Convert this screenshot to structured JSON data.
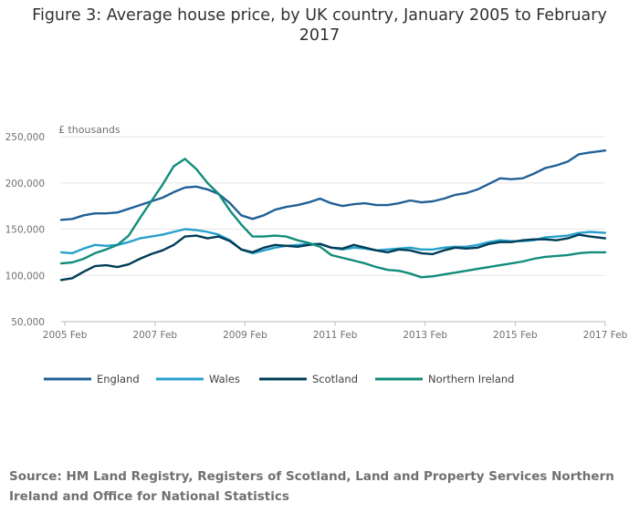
{
  "title": "Figure 3: Average house price, by UK country, January 2005 to February 2017",
  "unit_label": "£ thousands",
  "source": "Source: HM Land Registry, Registers of Scotland, Land and Property Services Northern Ireland and Office for National Statistics",
  "colors": {
    "england": "#206095",
    "wales": "#27a0cc",
    "scotland": "#003c57",
    "northern_ireland": "#118c7b",
    "grid": "#e6e6e6",
    "axis": "#bebebe"
  },
  "chart_data": {
    "type": "line",
    "title": "Figure 3: Average house price, by UK country, January 2005 to February 2017",
    "ylabel": "£ thousands",
    "xlabel": "",
    "x_start": "2005-01",
    "x_end": "2017-02",
    "ylim": [
      50000,
      250000
    ],
    "yticks": [
      50000,
      100000,
      150000,
      200000,
      250000
    ],
    "ytick_labels": [
      "50,000",
      "100,000",
      "150,000",
      "200,000",
      "250,000"
    ],
    "xtick_labels": [
      "2005 Feb",
      "2007 Feb",
      "2009 Feb",
      "2011 Feb",
      "2013 Feb",
      "2015 Feb",
      "2017 Feb"
    ],
    "grid": true,
    "legend_position": "bottom",
    "series": [
      {
        "name": "England",
        "points": [
          [
            "2005-01",
            160000
          ],
          [
            "2005-04",
            161000
          ],
          [
            "2005-07",
            165000
          ],
          [
            "2005-10",
            167000
          ],
          [
            "2006-01",
            167000
          ],
          [
            "2006-04",
            168000
          ],
          [
            "2006-07",
            172000
          ],
          [
            "2006-10",
            176000
          ],
          [
            "2007-01",
            180000
          ],
          [
            "2007-04",
            184000
          ],
          [
            "2007-07",
            190000
          ],
          [
            "2007-10",
            195000
          ],
          [
            "2008-01",
            196000
          ],
          [
            "2008-04",
            193000
          ],
          [
            "2008-07",
            188000
          ],
          [
            "2008-10",
            178000
          ],
          [
            "2009-01",
            165000
          ],
          [
            "2009-04",
            161000
          ],
          [
            "2009-07",
            165000
          ],
          [
            "2009-10",
            171000
          ],
          [
            "2010-01",
            174000
          ],
          [
            "2010-04",
            176000
          ],
          [
            "2010-07",
            179000
          ],
          [
            "2010-10",
            183000
          ],
          [
            "2011-01",
            178000
          ],
          [
            "2011-04",
            175000
          ],
          [
            "2011-07",
            177000
          ],
          [
            "2011-10",
            178000
          ],
          [
            "2012-01",
            176000
          ],
          [
            "2012-04",
            176000
          ],
          [
            "2012-07",
            178000
          ],
          [
            "2012-10",
            181000
          ],
          [
            "2013-01",
            179000
          ],
          [
            "2013-04",
            180000
          ],
          [
            "2013-07",
            183000
          ],
          [
            "2013-10",
            187000
          ],
          [
            "2014-01",
            189000
          ],
          [
            "2014-04",
            193000
          ],
          [
            "2014-07",
            199000
          ],
          [
            "2014-10",
            205000
          ],
          [
            "2015-01",
            204000
          ],
          [
            "2015-04",
            205000
          ],
          [
            "2015-07",
            210000
          ],
          [
            "2015-10",
            216000
          ],
          [
            "2016-01",
            219000
          ],
          [
            "2016-04",
            223000
          ],
          [
            "2016-07",
            231000
          ],
          [
            "2016-10",
            233000
          ],
          [
            "2017-02",
            235000
          ]
        ]
      },
      {
        "name": "Wales",
        "points": [
          [
            "2005-01",
            125000
          ],
          [
            "2005-04",
            124000
          ],
          [
            "2005-07",
            129000
          ],
          [
            "2005-10",
            133000
          ],
          [
            "2006-01",
            132000
          ],
          [
            "2006-04",
            133000
          ],
          [
            "2006-07",
            136000
          ],
          [
            "2006-10",
            140000
          ],
          [
            "2007-01",
            142000
          ],
          [
            "2007-04",
            144000
          ],
          [
            "2007-07",
            147000
          ],
          [
            "2007-10",
            150000
          ],
          [
            "2008-01",
            149000
          ],
          [
            "2008-04",
            147000
          ],
          [
            "2008-07",
            144000
          ],
          [
            "2008-10",
            138000
          ],
          [
            "2009-01",
            128000
          ],
          [
            "2009-04",
            124000
          ],
          [
            "2009-07",
            127000
          ],
          [
            "2009-10",
            130000
          ],
          [
            "2010-01",
            132000
          ],
          [
            "2010-04",
            133000
          ],
          [
            "2010-07",
            134000
          ],
          [
            "2010-10",
            134000
          ],
          [
            "2011-01",
            130000
          ],
          [
            "2011-04",
            128000
          ],
          [
            "2011-07",
            130000
          ],
          [
            "2011-10",
            129000
          ],
          [
            "2012-01",
            127000
          ],
          [
            "2012-04",
            128000
          ],
          [
            "2012-07",
            129000
          ],
          [
            "2012-10",
            130000
          ],
          [
            "2013-01",
            128000
          ],
          [
            "2013-04",
            128000
          ],
          [
            "2013-07",
            130000
          ],
          [
            "2013-10",
            131000
          ],
          [
            "2014-01",
            131000
          ],
          [
            "2014-04",
            133000
          ],
          [
            "2014-07",
            136000
          ],
          [
            "2014-10",
            138000
          ],
          [
            "2015-01",
            137000
          ],
          [
            "2015-04",
            137000
          ],
          [
            "2015-07",
            138000
          ],
          [
            "2015-10",
            141000
          ],
          [
            "2016-01",
            142000
          ],
          [
            "2016-04",
            143000
          ],
          [
            "2016-07",
            146000
          ],
          [
            "2016-10",
            147000
          ],
          [
            "2017-02",
            146000
          ]
        ]
      },
      {
        "name": "Scotland",
        "points": [
          [
            "2005-01",
            95000
          ],
          [
            "2005-04",
            97000
          ],
          [
            "2005-07",
            104000
          ],
          [
            "2005-10",
            110000
          ],
          [
            "2006-01",
            111000
          ],
          [
            "2006-04",
            109000
          ],
          [
            "2006-07",
            112000
          ],
          [
            "2006-10",
            118000
          ],
          [
            "2007-01",
            123000
          ],
          [
            "2007-04",
            127000
          ],
          [
            "2007-07",
            133000
          ],
          [
            "2007-10",
            142000
          ],
          [
            "2008-01",
            143000
          ],
          [
            "2008-04",
            140000
          ],
          [
            "2008-07",
            142000
          ],
          [
            "2008-10",
            137000
          ],
          [
            "2009-01",
            128000
          ],
          [
            "2009-04",
            125000
          ],
          [
            "2009-07",
            130000
          ],
          [
            "2009-10",
            133000
          ],
          [
            "2010-01",
            132000
          ],
          [
            "2010-04",
            131000
          ],
          [
            "2010-07",
            133000
          ],
          [
            "2010-10",
            134000
          ],
          [
            "2011-01",
            130000
          ],
          [
            "2011-04",
            129000
          ],
          [
            "2011-07",
            133000
          ],
          [
            "2011-10",
            130000
          ],
          [
            "2012-01",
            127000
          ],
          [
            "2012-04",
            125000
          ],
          [
            "2012-07",
            128000
          ],
          [
            "2012-10",
            127000
          ],
          [
            "2013-01",
            124000
          ],
          [
            "2013-04",
            123000
          ],
          [
            "2013-07",
            127000
          ],
          [
            "2013-10",
            130000
          ],
          [
            "2014-01",
            129000
          ],
          [
            "2014-04",
            130000
          ],
          [
            "2014-07",
            134000
          ],
          [
            "2014-10",
            136000
          ],
          [
            "2015-01",
            136000
          ],
          [
            "2015-04",
            138000
          ],
          [
            "2015-07",
            139000
          ],
          [
            "2015-10",
            139000
          ],
          [
            "2016-01",
            138000
          ],
          [
            "2016-04",
            140000
          ],
          [
            "2016-07",
            144000
          ],
          [
            "2016-10",
            142000
          ],
          [
            "2017-02",
            140000
          ]
        ]
      },
      {
        "name": "Northern Ireland",
        "points": [
          [
            "2005-01",
            113000
          ],
          [
            "2005-04",
            114000
          ],
          [
            "2005-07",
            118000
          ],
          [
            "2005-10",
            124000
          ],
          [
            "2006-01",
            128000
          ],
          [
            "2006-04",
            133000
          ],
          [
            "2006-07",
            143000
          ],
          [
            "2006-10",
            162000
          ],
          [
            "2007-01",
            180000
          ],
          [
            "2007-04",
            198000
          ],
          [
            "2007-07",
            218000
          ],
          [
            "2007-10",
            226000
          ],
          [
            "2008-01",
            215000
          ],
          [
            "2008-04",
            200000
          ],
          [
            "2008-07",
            188000
          ],
          [
            "2008-10",
            170000
          ],
          [
            "2009-01",
            155000
          ],
          [
            "2009-04",
            142000
          ],
          [
            "2009-07",
            142000
          ],
          [
            "2009-10",
            143000
          ],
          [
            "2010-01",
            142000
          ],
          [
            "2010-04",
            138000
          ],
          [
            "2010-07",
            135000
          ],
          [
            "2010-10",
            131000
          ],
          [
            "2011-01",
            122000
          ],
          [
            "2011-04",
            119000
          ],
          [
            "2011-07",
            116000
          ],
          [
            "2011-10",
            113000
          ],
          [
            "2012-01",
            109000
          ],
          [
            "2012-04",
            106000
          ],
          [
            "2012-07",
            105000
          ],
          [
            "2012-10",
            102000
          ],
          [
            "2013-01",
            98000
          ],
          [
            "2013-04",
            99000
          ],
          [
            "2013-07",
            101000
          ],
          [
            "2013-10",
            103000
          ],
          [
            "2014-01",
            105000
          ],
          [
            "2014-04",
            107000
          ],
          [
            "2014-07",
            109000
          ],
          [
            "2014-10",
            111000
          ],
          [
            "2015-01",
            113000
          ],
          [
            "2015-04",
            115000
          ],
          [
            "2015-07",
            118000
          ],
          [
            "2015-10",
            120000
          ],
          [
            "2016-01",
            121000
          ],
          [
            "2016-04",
            122000
          ],
          [
            "2016-07",
            124000
          ],
          [
            "2016-10",
            125000
          ],
          [
            "2017-02",
            125000
          ]
        ]
      }
    ]
  }
}
